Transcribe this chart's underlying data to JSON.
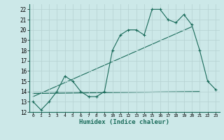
{
  "title": "",
  "xlabel": "Humidex (Indice chaleur)",
  "ylabel": "",
  "bg_color": "#cce8e8",
  "line_color": "#1a6b5a",
  "grid_color": "#b8d4d4",
  "xlim": [
    -0.5,
    23.5
  ],
  "ylim": [
    12,
    22.5
  ],
  "yticks": [
    12,
    13,
    14,
    15,
    16,
    17,
    18,
    19,
    20,
    21,
    22
  ],
  "xticks": [
    0,
    1,
    2,
    3,
    4,
    5,
    6,
    7,
    8,
    9,
    10,
    11,
    12,
    13,
    14,
    15,
    16,
    17,
    18,
    19,
    20,
    21,
    22,
    23
  ],
  "curve1_x": [
    0,
    1,
    2,
    3,
    4,
    5,
    6,
    7,
    8,
    9,
    10,
    11,
    12,
    13,
    14,
    15,
    16,
    17,
    18,
    19,
    20,
    21,
    22,
    23
  ],
  "curve1_y": [
    13.0,
    12.2,
    13.0,
    14.0,
    15.5,
    15.0,
    14.0,
    13.5,
    13.5,
    14.0,
    18.0,
    19.5,
    20.0,
    20.0,
    19.5,
    22.0,
    22.0,
    21.0,
    20.7,
    21.5,
    20.5,
    18.0,
    15.0,
    14.2
  ],
  "curve2_x": [
    0,
    21
  ],
  "curve2_y": [
    13.8,
    14.0
  ],
  "curve3_x": [
    0,
    20
  ],
  "curve3_y": [
    13.5,
    20.3
  ],
  "flat_line_x": [
    0,
    21
  ],
  "flat_line_y": [
    14.0,
    14.0
  ]
}
